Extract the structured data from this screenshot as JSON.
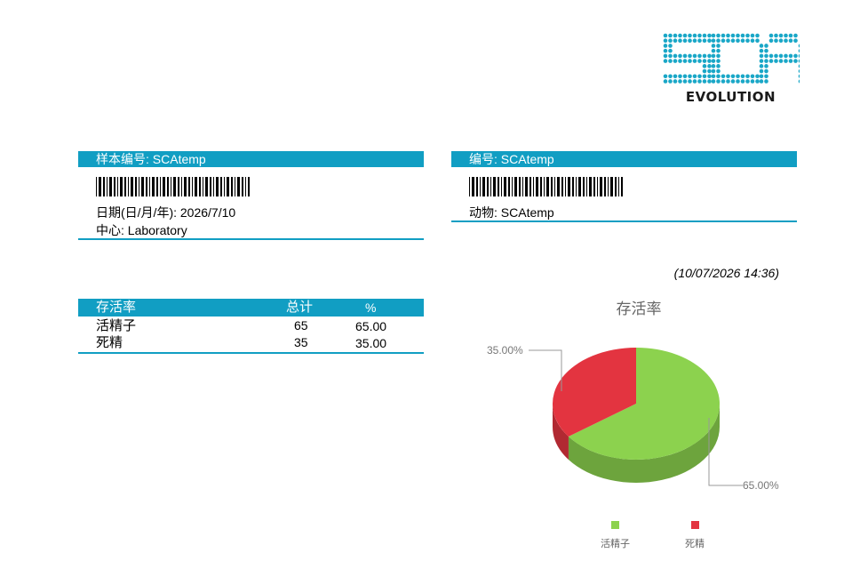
{
  "logo": {
    "text": "EVOLUTION"
  },
  "sample": {
    "label": "样本编号: SCAtemp",
    "date": "日期(日/月/年): 2026/7/10",
    "center": "中心: Laboratory"
  },
  "code": {
    "label": "编号: SCAtemp",
    "animal": "动物: SCAtemp"
  },
  "timestamp": "(10/07/2026  14:36)",
  "table": {
    "headers": [
      "存活率",
      "总计",
      "%"
    ],
    "rows": [
      [
        "活精子",
        "65",
        "65.00"
      ],
      [
        "死精",
        "35",
        "35.00"
      ]
    ]
  },
  "chart_data": {
    "type": "pie",
    "title": "存活率",
    "categories": [
      "活精子",
      "死精"
    ],
    "values": [
      65,
      35
    ],
    "value_labels": [
      "65.00%",
      "35.00%"
    ],
    "colors": [
      "#8cd24e",
      "#e33440"
    ],
    "legend_position": "bottom"
  }
}
